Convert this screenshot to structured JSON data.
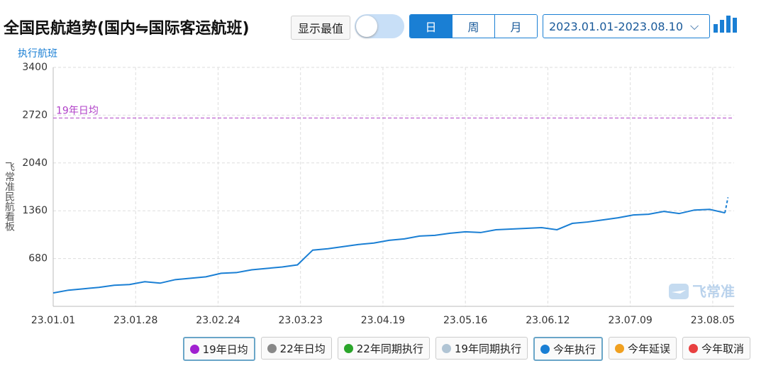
{
  "ui": {
    "title": "全国民航趋势(国内⇋国际客运航班)",
    "show_extremes": "显示最值",
    "periods": [
      "日",
      "周",
      "月"
    ],
    "period_active": 0,
    "date_range": "2023.01.01-2023.08.10",
    "y_axis_title": "执行航班",
    "watermark_side": "飞常准民航看板",
    "watermark_logo": "飞常准",
    "legend": [
      {
        "name": "19年日均",
        "color": "#a020d0",
        "active": true
      },
      {
        "name": "22年日均",
        "color": "#888888",
        "active": false
      },
      {
        "name": "22年同期执行",
        "color": "#2aa52a",
        "active": false
      },
      {
        "name": "19年同期执行",
        "color": "#b0c4d4",
        "active": false
      },
      {
        "name": "今年执行",
        "color": "#1a7fd4",
        "active": true
      },
      {
        "name": "今年延误",
        "color": "#f0a020",
        "active": false
      },
      {
        "name": "今年取消",
        "color": "#e84040",
        "active": false
      }
    ]
  },
  "chart_data": {
    "type": "line",
    "x": [
      "23.01.01",
      "23.01.06",
      "23.01.11",
      "23.01.16",
      "23.01.21",
      "23.01.26",
      "23.01.31",
      "23.02.05",
      "23.02.10",
      "23.02.15",
      "23.02.20",
      "23.02.25",
      "23.03.02",
      "23.03.07",
      "23.03.12",
      "23.03.17",
      "23.03.22",
      "23.03.27",
      "23.04.01",
      "23.04.06",
      "23.04.11",
      "23.04.16",
      "23.04.21",
      "23.04.26",
      "23.05.01",
      "23.05.06",
      "23.05.11",
      "23.05.16",
      "23.05.21",
      "23.05.26",
      "23.05.31",
      "23.06.05",
      "23.06.10",
      "23.06.15",
      "23.06.20",
      "23.06.25",
      "23.06.30",
      "23.07.05",
      "23.07.10",
      "23.07.15",
      "23.07.20",
      "23.07.25",
      "23.07.30",
      "23.08.04",
      "23.08.09",
      "23.08.10"
    ],
    "series": [
      {
        "name": "今年执行",
        "color": "#1a7fd4",
        "last_segment_dashed": true,
        "values": [
          190,
          230,
          250,
          270,
          300,
          310,
          350,
          330,
          380,
          400,
          420,
          470,
          480,
          520,
          540,
          560,
          590,
          800,
          820,
          850,
          880,
          900,
          940,
          960,
          1000,
          1010,
          1040,
          1060,
          1050,
          1090,
          1100,
          1110,
          1120,
          1090,
          1180,
          1200,
          1230,
          1260,
          1300,
          1310,
          1350,
          1320,
          1370,
          1380,
          1330,
          1550
        ]
      }
    ],
    "reference_line": {
      "label": "19年日均",
      "value": 2680,
      "color": "#b040c8"
    },
    "xlim": [
      "23.01.01",
      "23.08.12"
    ],
    "xticks": [
      "23.01.01",
      "23.01.28",
      "23.02.24",
      "23.03.23",
      "23.04.19",
      "23.05.16",
      "23.06.12",
      "23.07.09",
      "23.08.05"
    ],
    "ylim": [
      0,
      3400
    ],
    "yticks": [
      680,
      1360,
      2040,
      2720,
      3400
    ],
    "grid": true
  }
}
